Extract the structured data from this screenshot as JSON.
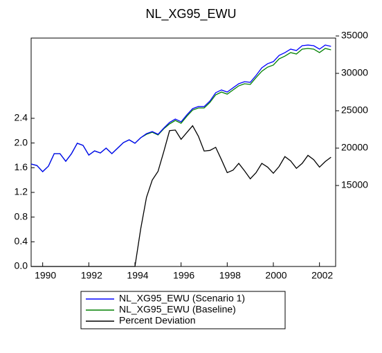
{
  "chart_data": {
    "type": "line",
    "title": "NL_XG95_EWU",
    "x": [
      1989.5,
      1989.75,
      1990,
      1990.25,
      1990.5,
      1990.75,
      1991,
      1991.25,
      1991.5,
      1991.75,
      1992,
      1992.25,
      1992.5,
      1992.75,
      1993,
      1993.25,
      1993.5,
      1993.75,
      1994,
      1994.25,
      1994.5,
      1994.75,
      1995,
      1995.25,
      1995.5,
      1995.75,
      1996,
      1996.25,
      1996.5,
      1996.75,
      1997,
      1997.25,
      1997.5,
      1997.75,
      1998,
      1998.25,
      1998.5,
      1998.75,
      1999,
      1999.25,
      1999.5,
      1999.75,
      2000,
      2000.25,
      2000.5,
      2000.75,
      2001,
      2001.25,
      2001.5,
      2001.75,
      2002,
      2002.25,
      2002.5
    ],
    "xlim": [
      1989.5,
      2002.7
    ],
    "xticks": [
      1990,
      1992,
      1994,
      1996,
      1998,
      2000,
      2002
    ],
    "ylim": [
      0,
      3.7
    ],
    "yticks": [
      {
        "value": 0,
        "label": "0.0"
      },
      0.4,
      0.8,
      1.2,
      1.6,
      {
        "value": 2,
        "label": "2.0"
      },
      2.4
    ],
    "y2lim": [
      4170,
      34720
    ],
    "y2ticks": [
      15000,
      20000,
      25000,
      30000,
      35000
    ],
    "series": [
      {
        "name": "NL_XG95_EWU (Scenario 1)",
        "color": "#0000ff",
        "axis": "y2",
        "values": [
          17870,
          17680,
          16850,
          17590,
          19260,
          19260,
          18240,
          19260,
          20650,
          20370,
          19070,
          19630,
          19350,
          20000,
          19260,
          20000,
          20740,
          21110,
          20650,
          21390,
          21940,
          22220,
          21850,
          22680,
          23430,
          23890,
          23520,
          24450,
          25280,
          25560,
          25560,
          26300,
          27410,
          27780,
          27500,
          28060,
          28610,
          28890,
          28800,
          29720,
          30740,
          31290,
          31570,
          32400,
          32770,
          33240,
          33050,
          33700,
          33790,
          33700,
          33240,
          33790,
          33610
        ]
      },
      {
        "name": "NL_XG95_EWU (Baseline)",
        "color": "#008000",
        "axis": "y2",
        "values": [
          17870,
          17680,
          16850,
          17590,
          19260,
          19260,
          18240,
          19260,
          20650,
          20370,
          19070,
          19630,
          19350,
          20000,
          19260,
          20000,
          20740,
          21110,
          20650,
          21390,
          21850,
          22130,
          21760,
          22590,
          23240,
          23700,
          23330,
          24260,
          25090,
          25370,
          25370,
          26110,
          27130,
          27500,
          27220,
          27780,
          28330,
          28610,
          28520,
          29440,
          30280,
          30830,
          31110,
          31940,
          32310,
          32780,
          32590,
          33240,
          33330,
          33240,
          32780,
          33330,
          33150
        ]
      },
      {
        "name": "Percent Deviation",
        "color": "#000000",
        "values": [
          0,
          0,
          0,
          0,
          0,
          0,
          0,
          0,
          0,
          0,
          0,
          0,
          0,
          0,
          0,
          0,
          0,
          0,
          0,
          0.61,
          1.12,
          1.4,
          1.54,
          1.86,
          2.2,
          2.21,
          2.06,
          2.17,
          2.28,
          2.11,
          1.87,
          1.88,
          1.93,
          1.73,
          1.52,
          1.56,
          1.67,
          1.55,
          1.42,
          1.52,
          1.67,
          1.61,
          1.51,
          1.62,
          1.78,
          1.71,
          1.59,
          1.67,
          1.8,
          1.73,
          1.61,
          1.7,
          1.77
        ]
      }
    ]
  }
}
